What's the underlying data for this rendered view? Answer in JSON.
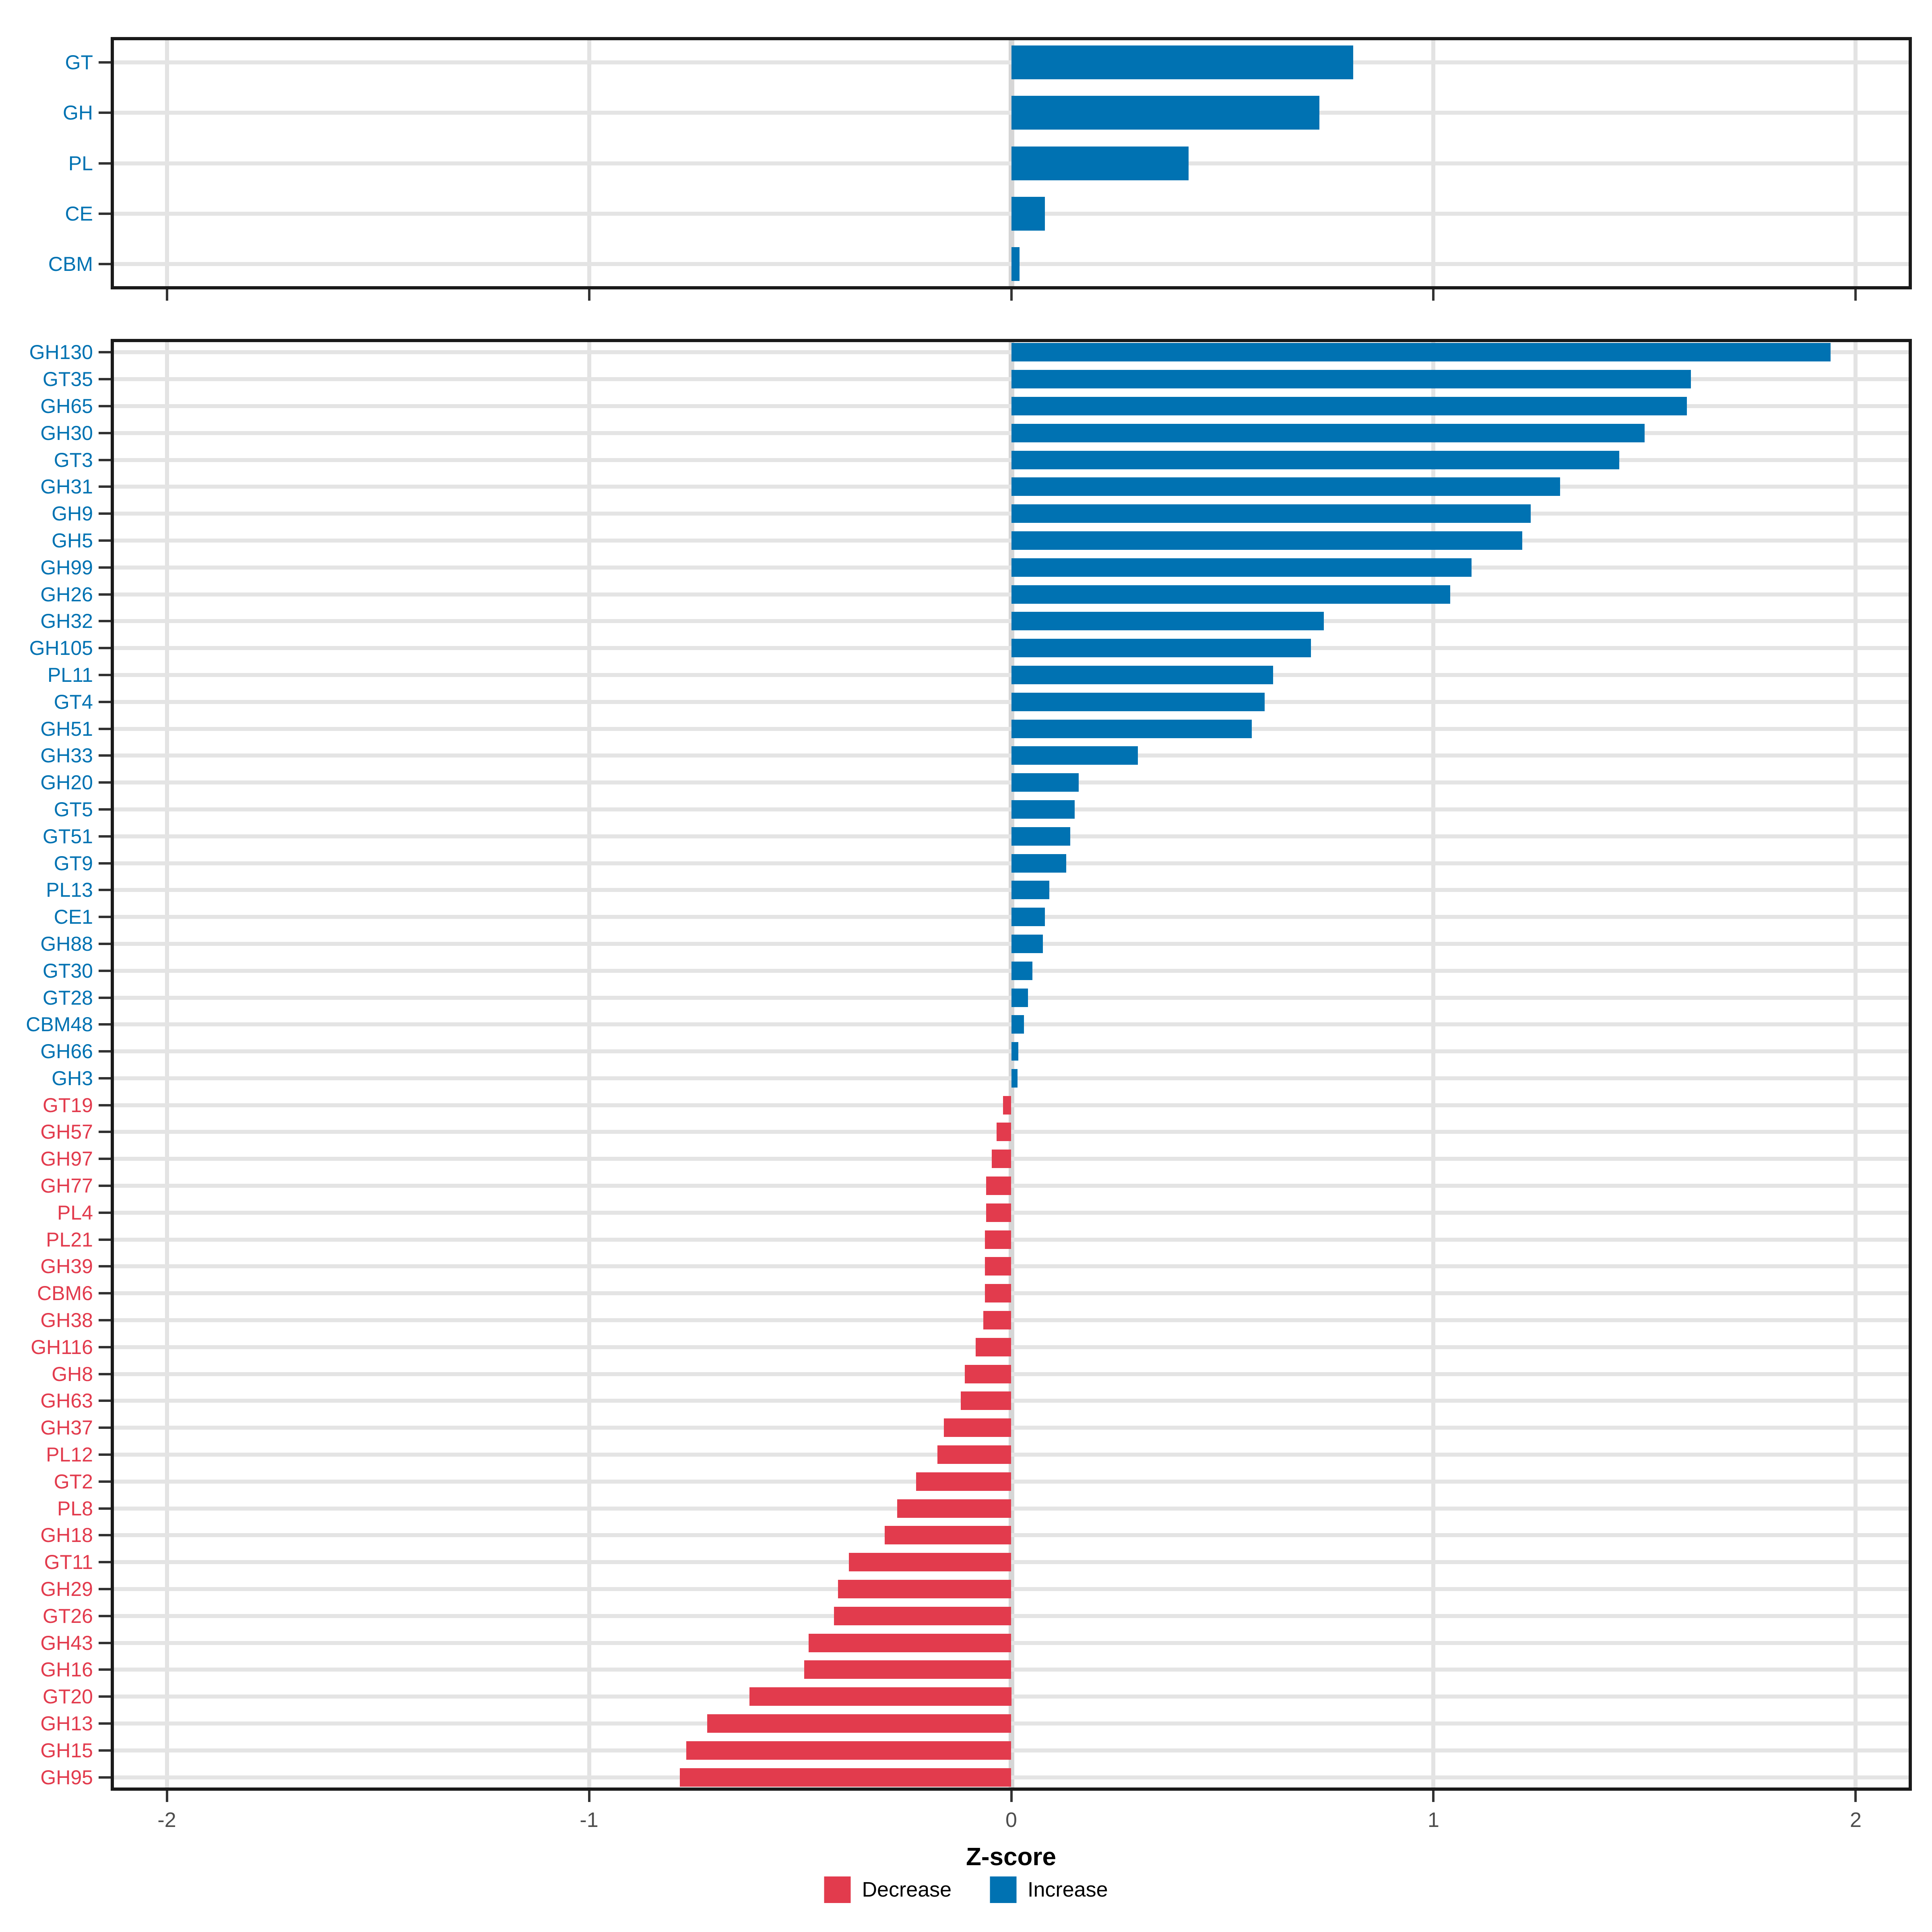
{
  "axis": {
    "xlabel": "Z-score",
    "tick_labels": [
      "-2",
      "-1",
      "0",
      "1",
      "2"
    ],
    "tick_values": [
      -2,
      -1,
      0,
      1,
      2
    ],
    "xlim": [
      -2.133,
      2.133
    ]
  },
  "legend": {
    "items": [
      {
        "label": "Decrease",
        "color": "#e23b4d"
      },
      {
        "label": "Increase",
        "color": "#0072b2"
      }
    ]
  },
  "colors": {
    "increase": "#0072b2",
    "decrease": "#e23b4d",
    "grid": "#e3e3e3",
    "zero_grid": "#d6d6d6",
    "axis_text": "#4d4d4d",
    "panel_border": "#1a1a1a"
  },
  "chart_data": [
    {
      "type": "bar",
      "orientation": "horizontal",
      "panel": "top",
      "title": "",
      "xlabel": "Z-score",
      "xlim": [
        -2.133,
        2.133
      ],
      "grid": true,
      "categories": [
        "GT",
        "GH",
        "PL",
        "CE",
        "CBM"
      ],
      "values": [
        0.81,
        0.73,
        0.42,
        0.08,
        0.02
      ]
    },
    {
      "type": "bar",
      "orientation": "horizontal",
      "panel": "bottom",
      "title": "",
      "xlabel": "Z-score",
      "xlim": [
        -2.133,
        2.133
      ],
      "grid": true,
      "legend_position": "bottom",
      "categories": [
        "GH130",
        "GT35",
        "GH65",
        "GH30",
        "GT3",
        "GH31",
        "GH9",
        "GH5",
        "GH99",
        "GH26",
        "GH32",
        "GH105",
        "PL11",
        "GT4",
        "GH51",
        "GH33",
        "GH20",
        "GT5",
        "GT51",
        "GT9",
        "PL13",
        "CE1",
        "GH88",
        "GT30",
        "GT28",
        "CBM48",
        "GH66",
        "GH3",
        "GT19",
        "GH57",
        "GH97",
        "GH77",
        "PL4",
        "PL21",
        "GH39",
        "CBM6",
        "GH38",
        "GH116",
        "GH8",
        "GH63",
        "GH37",
        "PL12",
        "GT2",
        "PL8",
        "GH18",
        "GT11",
        "GH29",
        "GT26",
        "GH43",
        "GH16",
        "GT20",
        "GH13",
        "GH15",
        "GH95"
      ],
      "values": [
        1.94,
        1.61,
        1.6,
        1.5,
        1.44,
        1.3,
        1.23,
        1.21,
        1.09,
        1.04,
        0.74,
        0.71,
        0.62,
        0.6,
        0.57,
        0.3,
        0.16,
        0.15,
        0.14,
        0.13,
        0.09,
        0.08,
        0.075,
        0.05,
        0.04,
        0.03,
        0.017,
        0.015,
        -0.02,
        -0.035,
        -0.046,
        -0.06,
        -0.06,
        -0.062,
        -0.062,
        -0.062,
        -0.066,
        -0.084,
        -0.11,
        -0.12,
        -0.16,
        -0.175,
        -0.225,
        -0.27,
        -0.3,
        -0.385,
        -0.41,
        -0.42,
        -0.48,
        -0.49,
        -0.62,
        -0.72,
        -0.77,
        -0.785
      ]
    }
  ]
}
